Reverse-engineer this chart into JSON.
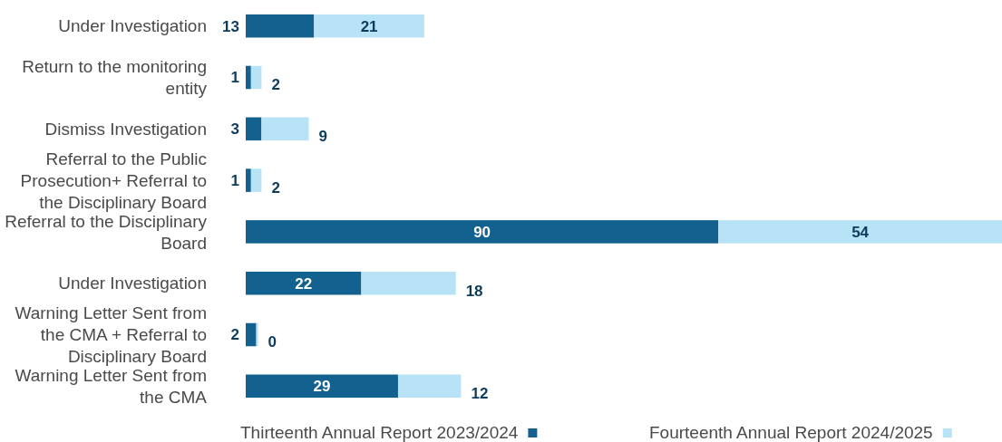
{
  "chart_data": {
    "type": "bar",
    "orientation": "horizontal",
    "stacked": true,
    "categories": [
      "Under Investigation",
      "Return to the monitoring entity",
      "Dismiss Investigation",
      "Referral to the Public Prosecution+ Referral to the Disciplinary Board",
      "Referral to the Disciplinary Board",
      "Under Investigation",
      "Warning Letter Sent from the CMA + Referral to Disciplinary Board",
      "Warning Letter Sent from the CMA"
    ],
    "series": [
      {
        "name": "Thirteenth Annual Report 2023/2024",
        "color": "#12618f",
        "values": [
          13,
          1,
          3,
          1,
          90,
          22,
          2,
          29
        ]
      },
      {
        "name": "Fourteenth Annual Report 2024/2025",
        "color": "#b8e3f7",
        "values": [
          21,
          2,
          9,
          2,
          54,
          18,
          0,
          12
        ]
      }
    ],
    "data_labels": true,
    "legend": "bottom"
  }
}
